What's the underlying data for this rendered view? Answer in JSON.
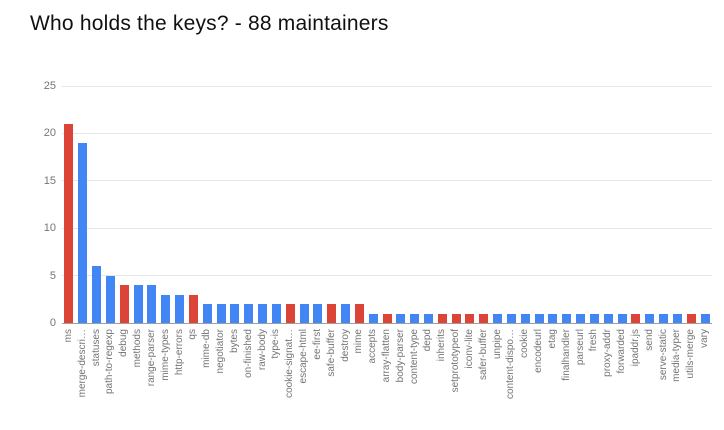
{
  "title": "Who holds the keys? - 88 maintainers",
  "colors": {
    "red": "#db4437",
    "blue": "#4285f4",
    "grid": "#e6e6e6",
    "baseline": "#9e9e9e",
    "axis_text": "#757575",
    "title_text": "#111111",
    "background": "#ffffff"
  },
  "chart_data": {
    "type": "bar",
    "title": "Who holds the keys? - 88 maintainers",
    "xlabel": "",
    "ylabel": "",
    "ylim": [
      0,
      25
    ],
    "y_ticks": [
      0,
      5,
      10,
      15,
      20,
      25
    ],
    "grid": true,
    "legend": false,
    "x_label_rotation": -90,
    "categories": [
      "ms",
      "merge-descri…",
      "statuses",
      "path-to-regexp",
      "debug",
      "methods",
      "range-parser",
      "mime-types",
      "http-errors",
      "qs",
      "mime-db",
      "negotiator",
      "bytes",
      "on-finished",
      "raw-body",
      "type-is",
      "cookie-signat…",
      "escape-html",
      "ee-first",
      "safe-buffer",
      "destroy",
      "mime",
      "accepts",
      "array-flatten",
      "body-parser",
      "content-type",
      "depd",
      "inherits",
      "setprototypeof",
      "iconv-lite",
      "safer-buffer",
      "unpipe",
      "content-dispo…",
      "cookie",
      "encodeurl",
      "etag",
      "finalhandler",
      "parseurl",
      "fresh",
      "proxy-addr",
      "forwarded",
      "ipaddr.js",
      "send",
      "serve-static",
      "media-typer",
      "utils-merge",
      "vary"
    ],
    "values": [
      21,
      19,
      6,
      5,
      4,
      4,
      4,
      3,
      3,
      3,
      2,
      2,
      2,
      2,
      2,
      2,
      2,
      2,
      2,
      2,
      2,
      2,
      1,
      1,
      1,
      1,
      1,
      1,
      1,
      1,
      1,
      1,
      1,
      1,
      1,
      1,
      1,
      1,
      1,
      1,
      1,
      1,
      1,
      1,
      1,
      1,
      1
    ],
    "bar_colors": [
      "red",
      "blue",
      "blue",
      "blue",
      "red",
      "blue",
      "blue",
      "blue",
      "blue",
      "red",
      "blue",
      "blue",
      "blue",
      "blue",
      "blue",
      "blue",
      "red",
      "blue",
      "blue",
      "red",
      "blue",
      "red",
      "blue",
      "red",
      "blue",
      "blue",
      "blue",
      "red",
      "red",
      "red",
      "red",
      "blue",
      "blue",
      "blue",
      "blue",
      "blue",
      "blue",
      "blue",
      "blue",
      "blue",
      "blue",
      "red",
      "blue",
      "blue",
      "blue",
      "red",
      "blue"
    ]
  }
}
